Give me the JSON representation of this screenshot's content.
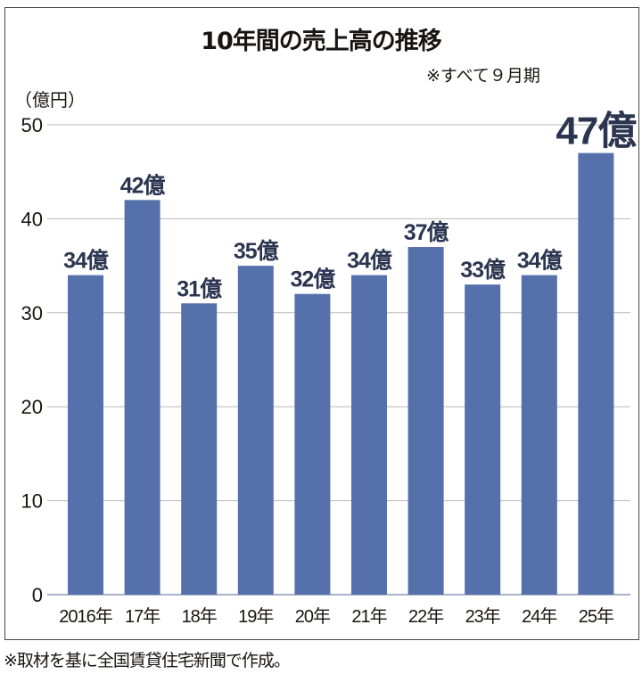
{
  "chart_data": {
    "type": "bar",
    "title": "10年間の売上高の推移",
    "subtitle": "※すべて９月期",
    "ylabel": "（億円）",
    "categories": [
      "2016年",
      "17年",
      "18年",
      "19年",
      "20年",
      "21年",
      "22年",
      "23年",
      "24年",
      "25年"
    ],
    "values": [
      34,
      42,
      31,
      35,
      32,
      34,
      37,
      33,
      34,
      47
    ],
    "data_labels": [
      "34億",
      "42億",
      "31億",
      "35億",
      "32億",
      "34億",
      "37億",
      "33億",
      "34億",
      "47億"
    ],
    "ylim": [
      0,
      50
    ],
    "yticks": [
      0,
      10,
      20,
      30,
      40,
      50
    ],
    "grid": "horizontal",
    "bar_color": "#5570aa",
    "highlight_label_index": 9
  },
  "footer": "※取材を基に全国賃貸住宅新聞で作成。"
}
